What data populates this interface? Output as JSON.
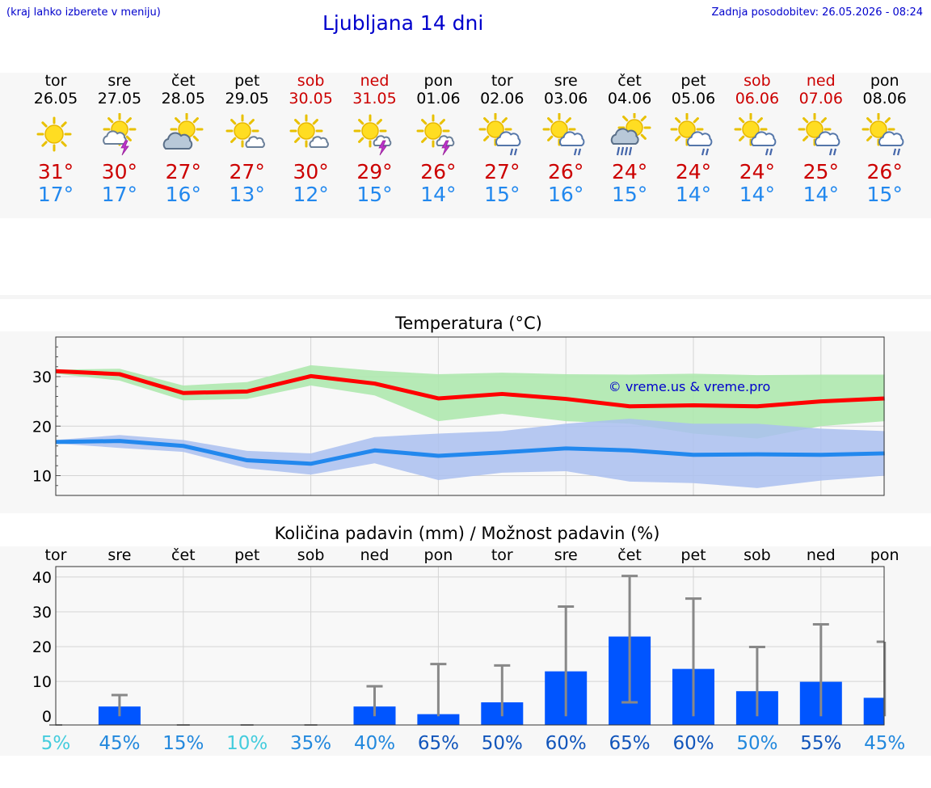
{
  "header": {
    "hint": "(kraj lahko izberete v meniju)",
    "title": "Ljubljana 14 dni",
    "updated": "Zadnja posodobitev: 26.05.2026 - 08:24"
  },
  "days": [
    {
      "name": "tor",
      "date": "26.05",
      "weekend": false,
      "icon": "sun-icon",
      "tmax": "31°",
      "tmin": "17°"
    },
    {
      "name": "sre",
      "date": "27.05",
      "weekend": false,
      "icon": "sun-cloud-thunder-icon",
      "tmax": "30°",
      "tmin": "17°"
    },
    {
      "name": "čet",
      "date": "28.05",
      "weekend": false,
      "icon": "sun-cloud-icon",
      "tmax": "27°",
      "tmin": "16°"
    },
    {
      "name": "pet",
      "date": "29.05",
      "weekend": false,
      "icon": "sun-small-cloud-icon",
      "tmax": "27°",
      "tmin": "13°"
    },
    {
      "name": "sob",
      "date": "30.05",
      "weekend": true,
      "icon": "sun-small-cloud-icon",
      "tmax": "30°",
      "tmin": "12°"
    },
    {
      "name": "ned",
      "date": "31.05",
      "weekend": true,
      "icon": "sun-thunder-icon",
      "tmax": "29°",
      "tmin": "15°"
    },
    {
      "name": "pon",
      "date": "01.06",
      "weekend": false,
      "icon": "sun-thunder-icon",
      "tmax": "26°",
      "tmin": "14°"
    },
    {
      "name": "tor",
      "date": "02.06",
      "weekend": false,
      "icon": "sun-cloud-rain-icon",
      "tmax": "27°",
      "tmin": "15°"
    },
    {
      "name": "sre",
      "date": "03.06",
      "weekend": false,
      "icon": "sun-cloud-rain-icon",
      "tmax": "26°",
      "tmin": "16°"
    },
    {
      "name": "čet",
      "date": "04.06",
      "weekend": false,
      "icon": "sun-grey-cloud-heavy-rain-icon",
      "tmax": "24°",
      "tmin": "15°"
    },
    {
      "name": "pet",
      "date": "05.06",
      "weekend": false,
      "icon": "sun-cloud-rain-icon",
      "tmax": "24°",
      "tmin": "14°"
    },
    {
      "name": "sob",
      "date": "06.06",
      "weekend": true,
      "icon": "sun-cloud-rain-icon",
      "tmax": "24°",
      "tmin": "14°"
    },
    {
      "name": "ned",
      "date": "07.06",
      "weekend": true,
      "icon": "sun-cloud-rain-icon",
      "tmax": "25°",
      "tmin": "14°"
    },
    {
      "name": "pon",
      "date": "08.06",
      "weekend": false,
      "icon": "sun-cloud-rain-icon",
      "tmax": "26°",
      "tmin": "15°"
    }
  ],
  "colors": {
    "max_line": "#ff0000",
    "max_band": "#aae8aa",
    "min_line": "#2288ee",
    "min_band": "#aabff0",
    "bar": "#0055ff",
    "whisker": "#888888",
    "watermark": "#0000cc"
  },
  "chart_data": [
    {
      "type": "line",
      "title": "Temperatura (°C)",
      "watermark": "© vreme.us & vreme.pro",
      "x": [
        "26.05",
        "27.05",
        "28.05",
        "29.05",
        "30.05",
        "31.05",
        "01.06",
        "02.06",
        "03.06",
        "04.06",
        "05.06",
        "06.06",
        "07.06",
        "08.06"
      ],
      "ylim": [
        6,
        38
      ],
      "yticks": [
        10,
        20,
        30
      ],
      "grid": true,
      "series": [
        {
          "values": [
            31.1,
            30.5,
            26.7,
            27.0,
            30.1,
            28.6,
            25.6,
            26.5,
            25.5,
            24.0,
            24.2,
            24.0,
            25.0,
            25.6
          ],
          "band_low": [
            30.6,
            29.2,
            25.2,
            25.5,
            28.2,
            26.2,
            21.0,
            22.5,
            21.0,
            20.5,
            18.5,
            17.5,
            20.0,
            21.0
          ],
          "band_high": [
            31.4,
            31.6,
            28.2,
            28.9,
            32.3,
            31.2,
            30.5,
            30.8,
            30.5,
            30.4,
            30.6,
            30.3,
            30.4,
            30.4
          ]
        },
        {
          "values": [
            16.8,
            17.0,
            16.0,
            13.1,
            12.4,
            15.1,
            14.0,
            14.7,
            15.5,
            15.1,
            14.2,
            14.3,
            14.2,
            14.5
          ],
          "band_low": [
            16.5,
            15.6,
            14.8,
            11.5,
            10.2,
            12.5,
            9.1,
            10.6,
            10.9,
            8.8,
            8.5,
            7.5,
            9.0,
            10.0
          ],
          "band_high": [
            17.2,
            18.2,
            17.2,
            15.0,
            14.5,
            17.8,
            18.5,
            19.0,
            20.5,
            21.5,
            20.5,
            20.5,
            19.5,
            19.0
          ]
        }
      ]
    },
    {
      "type": "bar",
      "title": "Količina padavin (mm) / Možnost padavin (%)",
      "categories": [
        "tor",
        "sre",
        "čet",
        "pet",
        "sob",
        "ned",
        "pon",
        "tor",
        "sre",
        "čet",
        "pet",
        "sob",
        "ned",
        "pon"
      ],
      "values": [
        0,
        2.8,
        0,
        0,
        0,
        2.8,
        0.6,
        4.0,
        12.9,
        22.9,
        13.6,
        7.2,
        9.9,
        5.3
      ],
      "error_high": [
        0,
        6.1,
        0,
        0,
        0,
        8.6,
        15.0,
        14.6,
        31.5,
        40.3,
        33.8,
        19.9,
        26.4,
        21.4
      ],
      "error_low": [
        0,
        0,
        0,
        0,
        0,
        0,
        0,
        0,
        0,
        4.0,
        0,
        0,
        0,
        0
      ],
      "ylim": [
        -2.5,
        43
      ],
      "yticks": [
        0,
        10,
        20,
        30,
        40
      ],
      "probabilities": [
        "5%",
        "45%",
        "15%",
        "10%",
        "35%",
        "40%",
        "65%",
        "50%",
        "60%",
        "65%",
        "60%",
        "50%",
        "55%",
        "45%"
      ],
      "probability_colors": [
        "#44ccdd",
        "#2288dd",
        "#2288dd",
        "#44ccdd",
        "#2288dd",
        "#2288dd",
        "#1155bb",
        "#1155bb",
        "#1155bb",
        "#1155bb",
        "#1155bb",
        "#2288dd",
        "#1155bb",
        "#2288dd"
      ],
      "grid": true
    }
  ]
}
